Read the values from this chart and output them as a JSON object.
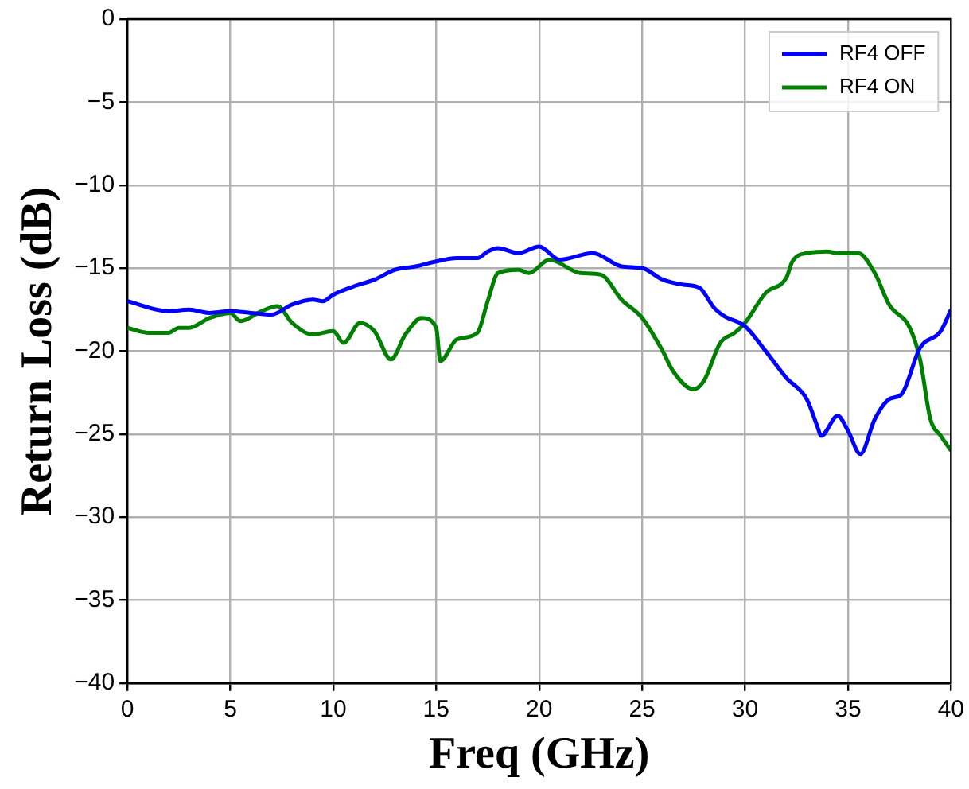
{
  "chart_data": {
    "type": "line",
    "xlabel": "Freq (GHz)",
    "ylabel": "Return Loss (dB)",
    "xlim": [
      0,
      40
    ],
    "ylim": [
      -40,
      0
    ],
    "xticks": [
      0,
      5,
      10,
      15,
      20,
      25,
      30,
      35,
      40
    ],
    "yticks": [
      {
        "value": -40,
        "label": "−40"
      },
      {
        "value": -35,
        "label": "−35"
      },
      {
        "value": -30,
        "label": "−30"
      },
      {
        "value": -25,
        "label": "−25"
      },
      {
        "value": -20,
        "label": "−20"
      },
      {
        "value": -15,
        "label": "−15"
      },
      {
        "value": -10,
        "label": "−10"
      },
      {
        "value": -5,
        "label": "−5"
      },
      0
    ],
    "grid": true,
    "legend": "top right",
    "marker": "none",
    "line_style": "solid",
    "series": [
      {
        "name": "RF4 OFF",
        "color": "#0000ff",
        "x": [
          0,
          2,
          3,
          4,
          5,
          6,
          7,
          8,
          9,
          9.5,
          10,
          11,
          12,
          13,
          14,
          15,
          16,
          17,
          17.5,
          18,
          19,
          20,
          21,
          22.6,
          24,
          25,
          26,
          27,
          27.8,
          28.5,
          29,
          30,
          31,
          32,
          33,
          33.5,
          33.7,
          34.5,
          35,
          35.6,
          36.3,
          37,
          37.6,
          38.5,
          39.5,
          40
        ],
        "values": [
          -17.0,
          -17.6,
          -17.5,
          -17.7,
          -17.6,
          -17.7,
          -17.8,
          -17.2,
          -16.9,
          -17.0,
          -16.6,
          -16.1,
          -15.7,
          -15.1,
          -14.9,
          -14.6,
          -14.4,
          -14.4,
          -14.0,
          -13.8,
          -14.1,
          -13.7,
          -14.5,
          -14.1,
          -14.9,
          -15.0,
          -15.7,
          -16.0,
          -16.2,
          -17.4,
          -17.9,
          -18.5,
          -20.0,
          -21.6,
          -22.9,
          -24.5,
          -25.1,
          -23.9,
          -24.8,
          -26.2,
          -24.1,
          -22.9,
          -22.6,
          -19.8,
          -18.8,
          -17.5
        ]
      },
      {
        "name": "RF4 ON",
        "color": "#008000",
        "x": [
          0,
          1,
          2,
          2.5,
          3,
          4,
          5,
          5.5,
          6.5,
          7.3,
          8,
          9,
          10,
          10.5,
          11.3,
          12,
          12.8,
          13.5,
          14.3,
          15,
          15.2,
          16,
          17,
          17.5,
          18,
          19,
          19.5,
          20.5,
          22,
          23,
          24,
          25,
          26,
          26.5,
          27.5,
          28,
          28.8,
          29.5,
          30,
          31,
          32,
          32.3,
          33,
          34,
          34.5,
          35.5,
          36.3,
          37,
          38,
          38.5,
          39,
          39.5,
          40
        ],
        "values": [
          -18.6,
          -18.9,
          -18.9,
          -18.6,
          -18.6,
          -18.0,
          -17.7,
          -18.2,
          -17.6,
          -17.3,
          -18.3,
          -19.0,
          -18.8,
          -19.5,
          -18.3,
          -18.8,
          -20.5,
          -19.0,
          -18.0,
          -18.6,
          -20.6,
          -19.3,
          -18.9,
          -17.0,
          -15.3,
          -15.1,
          -15.3,
          -14.5,
          -15.3,
          -15.4,
          -16.9,
          -18.0,
          -20.0,
          -21.2,
          -22.3,
          -21.8,
          -19.5,
          -18.9,
          -18.3,
          -16.5,
          -15.6,
          -14.6,
          -14.1,
          -14.0,
          -14.1,
          -14.1,
          -15.3,
          -17.2,
          -18.6,
          -20.5,
          -24.1,
          -25.1,
          -26.0
        ]
      }
    ]
  }
}
